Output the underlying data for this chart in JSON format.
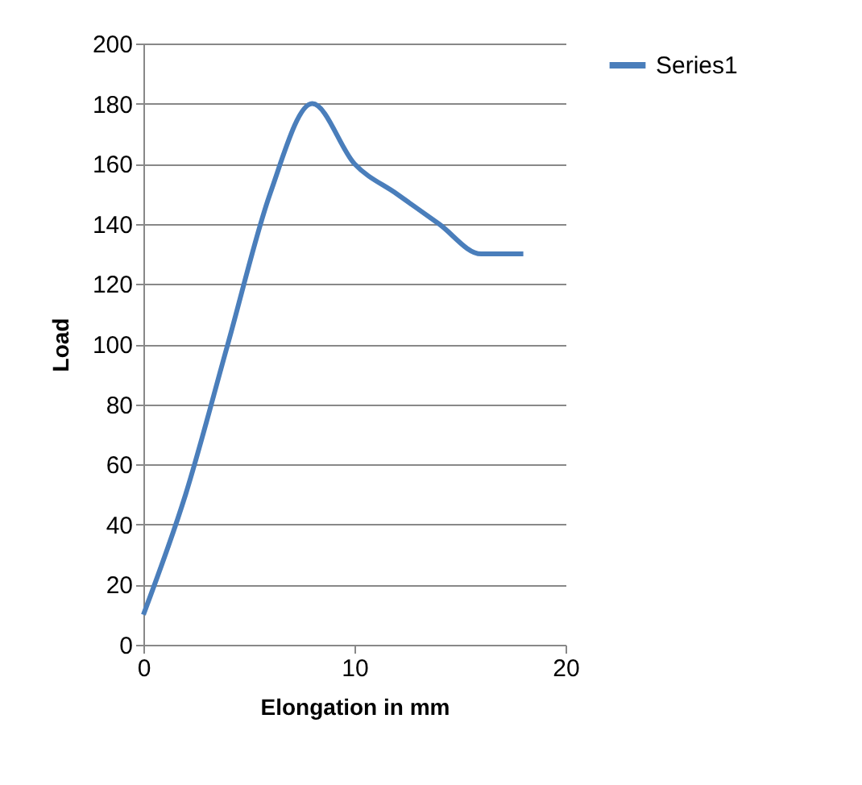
{
  "chart_data": {
    "type": "line",
    "xlabel": "Elongation in mm",
    "ylabel": "Load",
    "x": [
      0,
      2,
      4,
      6,
      8,
      10,
      12,
      14,
      16,
      18
    ],
    "series": [
      {
        "name": "Series1",
        "color": "#4a7ebb",
        "values": [
          10,
          50,
          100,
          150,
          180,
          160,
          150,
          140,
          130,
          130
        ]
      }
    ],
    "xlim": [
      0,
      20
    ],
    "xticks": [
      0,
      10,
      20
    ],
    "ylim": [
      0,
      200
    ],
    "yticks": [
      0,
      20,
      40,
      60,
      80,
      100,
      120,
      140,
      160,
      180,
      200
    ],
    "grid": "y",
    "legend": "right",
    "marker": "none",
    "line_style": "solid"
  }
}
